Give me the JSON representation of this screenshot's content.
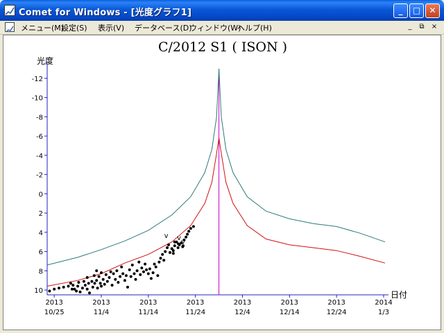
{
  "window": {
    "title": "Comet for Windows - [光度グラフ1]",
    "buttons": {
      "minimize": "_",
      "maximize": "□",
      "close": "✕"
    }
  },
  "menu": {
    "items": [
      "メニュー(M)",
      "設定(S)",
      "表示(V)",
      "データベース(D)",
      "ウィンドウ(W)",
      "ヘルプ(H)"
    ],
    "mdi": {
      "minimize": "_",
      "restore": "⧉",
      "close": "×"
    }
  },
  "chart_data": {
    "type": "line",
    "title": "C/2012 S1 ( ISON )",
    "ylabel": "光度",
    "xlabel": "日付",
    "y_axis_inverted": true,
    "ylim": [
      10.5,
      -13
    ],
    "y_ticks": [
      "-12",
      "-10",
      "-8",
      "-6",
      "-4",
      "-2",
      "0",
      "2",
      "4",
      "6",
      "8",
      "10"
    ],
    "x_ticks": [
      {
        "year": "2013",
        "date": "10/25"
      },
      {
        "year": "2013",
        "date": "11/4"
      },
      {
        "year": "2013",
        "date": "11/14"
      },
      {
        "year": "2013",
        "date": "11/24"
      },
      {
        "year": "2013",
        "date": "12/4"
      },
      {
        "year": "2013",
        "date": "12/14"
      },
      {
        "year": "2013",
        "date": "12/24"
      },
      {
        "year": "2014",
        "date": "1/3"
      }
    ],
    "x_range_days": [
      -1.5,
      70.3
    ],
    "perihelion_day": 35,
    "perihelion_line_color": "#CC00CC",
    "series": [
      {
        "color": "#2E7A78",
        "points": [
          [
            -1.5,
            7.4
          ],
          [
            5,
            6.6
          ],
          [
            10,
            5.8
          ],
          [
            15,
            4.9
          ],
          [
            20,
            3.8
          ],
          [
            25,
            2.2
          ],
          [
            29,
            0.3
          ],
          [
            32,
            -2.2
          ],
          [
            33.5,
            -4.6
          ],
          [
            34.5,
            -8
          ],
          [
            35,
            -13.0
          ],
          [
            35.5,
            -8
          ],
          [
            36.5,
            -4.6
          ],
          [
            38,
            -2.2
          ],
          [
            41,
            0.3
          ],
          [
            45,
            1.8
          ],
          [
            50,
            2.6
          ],
          [
            55,
            3.1
          ],
          [
            60,
            3.4
          ],
          [
            65,
            4.1
          ],
          [
            70.3,
            5.0
          ]
        ]
      },
      {
        "color": "#D01010",
        "points": [
          [
            -1.5,
            9.6
          ],
          [
            5,
            9.0
          ],
          [
            10,
            8.3
          ],
          [
            15,
            7.2
          ],
          [
            20,
            6.3
          ],
          [
            25,
            5.0
          ],
          [
            29,
            3.3
          ],
          [
            32,
            1.0
          ],
          [
            33.5,
            -1.2
          ],
          [
            34.5,
            -4.2
          ],
          [
            35,
            -5.8
          ],
          [
            35.5,
            -4.2
          ],
          [
            36.5,
            -1.2
          ],
          [
            38,
            1.0
          ],
          [
            41,
            3.3
          ],
          [
            45,
            4.7
          ],
          [
            50,
            5.3
          ],
          [
            55,
            5.6
          ],
          [
            60,
            5.9
          ],
          [
            65,
            6.5
          ],
          [
            70.3,
            7.2
          ]
        ]
      }
    ],
    "observations": [
      [
        -1,
        10.1
      ],
      [
        0,
        9.9
      ],
      [
        1,
        9.8
      ],
      [
        2,
        9.7
      ],
      [
        3,
        9.6
      ],
      [
        3.5,
        9.3
      ],
      [
        3.8,
        9.9
      ],
      [
        4,
        9.5
      ],
      [
        4.3,
        9.9
      ],
      [
        4.7,
        10.1
      ],
      [
        5,
        9.6
      ],
      [
        5.2,
        9.2
      ],
      [
        5.5,
        10.2
      ],
      [
        6,
        9.8
      ],
      [
        6.3,
        9.1
      ],
      [
        6.6,
        9.5
      ],
      [
        7,
        8.7
      ],
      [
        7,
        9.9
      ],
      [
        7.3,
        9.3
      ],
      [
        7.5,
        10.3
      ],
      [
        8,
        9.1
      ],
      [
        8.2,
        9.7
      ],
      [
        8.5,
        8.5
      ],
      [
        8.6,
        9.3
      ],
      [
        9,
        8.0
      ],
      [
        9,
        9.0
      ],
      [
        9.2,
        9.8
      ],
      [
        9.5,
        8.6
      ],
      [
        9.8,
        9.3
      ],
      [
        10,
        8.2
      ],
      [
        10,
        9.6
      ],
      [
        10.4,
        8.9
      ],
      [
        10.7,
        9.4
      ],
      [
        11,
        8.4
      ],
      [
        11.3,
        9.1
      ],
      [
        11.7,
        8.7
      ],
      [
        12,
        8.1
      ],
      [
        12.3,
        9.5
      ],
      [
        12.6,
        8.3
      ],
      [
        13,
        8.9
      ],
      [
        13.3,
        8.0
      ],
      [
        13.6,
        9.2
      ],
      [
        14,
        8.6
      ],
      [
        14.3,
        7.6
      ],
      [
        14.6,
        8.3
      ],
      [
        15,
        9.0
      ],
      [
        15.3,
        8.5
      ],
      [
        15.6,
        9.7
      ],
      [
        16,
        7.9
      ],
      [
        16.3,
        8.6
      ],
      [
        16.6,
        7.4
      ],
      [
        17,
        8.3
      ],
      [
        17.3,
        8.9
      ],
      [
        17.6,
        8.0
      ],
      [
        18,
        7.1
      ],
      [
        18.3,
        8.4
      ],
      [
        18.6,
        7.7
      ],
      [
        19,
        8.1
      ],
      [
        19.3,
        7.3
      ],
      [
        19.6,
        7.9
      ],
      [
        20,
        8.3
      ],
      [
        20.3,
        7.8
      ],
      [
        20.6,
        8.8
      ],
      [
        21,
        8.2
      ],
      [
        21.3,
        7.3
      ],
      [
        21.6,
        7.6
      ],
      [
        22,
        8.5
      ],
      [
        22.3,
        7.1
      ],
      [
        22.6,
        6.7
      ],
      [
        23,
        6.3
      ],
      [
        23.3,
        6.9
      ],
      [
        23.6,
        6.0
      ],
      [
        24,
        5.6
      ],
      [
        24.3,
        5.3
      ],
      [
        24.6,
        6.1
      ],
      [
        25,
        5.7
      ],
      [
        25.3,
        5.9
      ],
      [
        25.6,
        5.4
      ],
      [
        26,
        5.0
      ],
      [
        26.3,
        5.6
      ],
      [
        26.6,
        5.3
      ],
      [
        27,
        5.1
      ],
      [
        27.3,
        5.5
      ],
      [
        27.6,
        4.8
      ],
      [
        28,
        4.5
      ],
      [
        28.3,
        4.2
      ],
      [
        28.6,
        3.9
      ],
      [
        29,
        3.6
      ],
      [
        29.6,
        3.4
      ],
      [
        25.3,
        6.2
      ],
      [
        25.6,
        5.0
      ],
      [
        26.4,
        5.2
      ],
      [
        27.4,
        5.4
      ]
    ],
    "upper_limit_marks": [
      [
        23.8,
        4.6
      ],
      [
        26.5,
        4.8
      ],
      [
        27.4,
        5.2
      ]
    ],
    "upper_limit_label": "v"
  }
}
